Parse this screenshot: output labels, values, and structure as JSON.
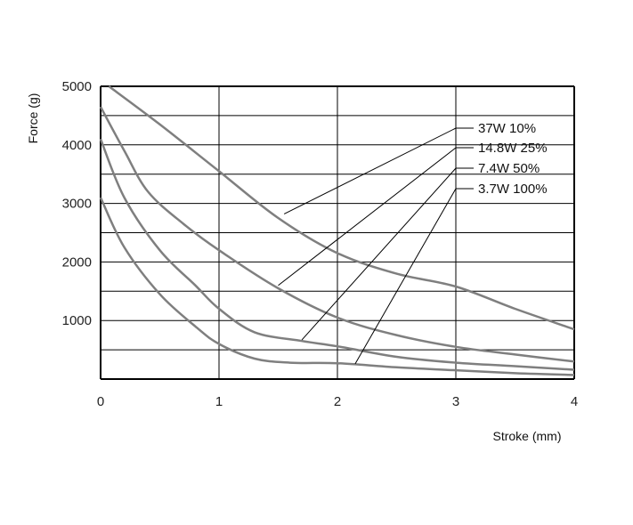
{
  "chart_data": {
    "type": "line",
    "xlabel": "Stroke (mm)",
    "ylabel": "Force (g)",
    "xlim": [
      0,
      4
    ],
    "ylim": [
      0,
      5000
    ],
    "x_ticks": [
      "0",
      "1",
      "2",
      "3",
      "4"
    ],
    "y_ticks": [
      "1000",
      "2000",
      "3000",
      "4000",
      "5000"
    ],
    "grid": true,
    "series": [
      {
        "name": "37W  10%",
        "color": "#7f7f7f",
        "x": [
          0.07,
          0.5,
          1.0,
          1.5,
          2.0,
          2.5,
          3.0,
          3.5,
          4.0
        ],
        "y": [
          5000,
          4350,
          3550,
          2750,
          2150,
          1800,
          1580,
          1200,
          850
        ]
      },
      {
        "name": "14.8W  25%",
        "color": "#7f7f7f",
        "x": [
          0.0,
          0.2,
          0.4,
          0.7,
          1.0,
          1.5,
          2.0,
          2.5,
          3.0,
          3.5,
          4.0
        ],
        "y": [
          4650,
          3900,
          3200,
          2650,
          2200,
          1550,
          1050,
          750,
          550,
          420,
          300
        ]
      },
      {
        "name": "7.4W  50%",
        "color": "#7f7f7f",
        "x": [
          0.0,
          0.2,
          0.5,
          0.8,
          1.0,
          1.3,
          1.7,
          2.0,
          2.5,
          3.0,
          3.5,
          4.0
        ],
        "y": [
          4100,
          3100,
          2200,
          1600,
          1200,
          800,
          650,
          560,
          380,
          280,
          220,
          160
        ]
      },
      {
        "name": "3.7W  100%",
        "color": "#7f7f7f",
        "x": [
          0.0,
          0.2,
          0.5,
          0.8,
          1.0,
          1.3,
          1.6,
          2.0,
          2.5,
          3.0,
          3.5,
          4.0
        ],
        "y": [
          3100,
          2250,
          1450,
          900,
          600,
          350,
          280,
          270,
          200,
          150,
          100,
          70
        ]
      }
    ],
    "annotations": [
      {
        "label": "37W  10%",
        "series": 0,
        "x": 1.55,
        "y": 2820
      },
      {
        "label": "14.8W  25%",
        "series": 1,
        "x": 1.5,
        "y": 1600
      },
      {
        "label": "7.4W  50%",
        "series": 2,
        "x": 1.7,
        "y": 670
      },
      {
        "label": "3.7W  100%",
        "series": 3,
        "x": 2.15,
        "y": 260
      }
    ]
  }
}
